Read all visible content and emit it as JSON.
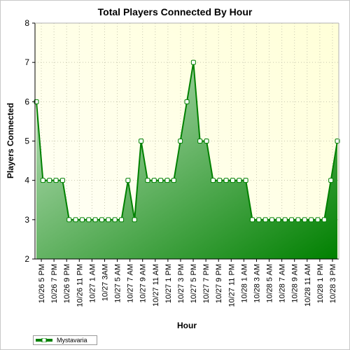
{
  "colors": {
    "plot_bg_light": "#fffff8",
    "plot_bg_dark": "#ffffd8",
    "area_light": "#c8e6c8",
    "area_dark": "#008000",
    "line": "#008000",
    "marker_fill": "#ffffff"
  },
  "chart_data": {
    "type": "area",
    "title": "Total Players Connected By Hour",
    "xlabel": "Hour",
    "ylabel": "Players Connected",
    "ylim": [
      2,
      8
    ],
    "yticks": [
      2,
      3,
      4,
      5,
      6,
      7,
      8
    ],
    "grid": true,
    "legend_position": "bottom-left",
    "x_tick_labels": [
      "10/26 5 PM",
      "10/26 7 PM",
      "10/26 9 PM",
      "10/26 11 PM",
      "10/27 1 AM",
      "10/27 3AM",
      "10/27 5 AM",
      "10/27 7 AM",
      "10/27 9 AM",
      "10/27 11 AM",
      "10/27 1 PM",
      "10/27 3 PM",
      "10/27 5 PM",
      "10/27 7 PM",
      "10/27 9 PM",
      "10/27 11 PM",
      "10/28 1 AM",
      "10/28 3 AM",
      "10/28 5 AM",
      "10/28 7 AM",
      "10/28 9 AM",
      "10/28 11 AM",
      "10/28 1 PM",
      "10/28 3 PM"
    ],
    "series": [
      {
        "name": "Mystavaria",
        "values": [
          6,
          4,
          4,
          4,
          4,
          3,
          3,
          3,
          3,
          3,
          3,
          3,
          3,
          3,
          4,
          3,
          5,
          4,
          4,
          4,
          4,
          4,
          5,
          6,
          7,
          5,
          5,
          4,
          4,
          4,
          4,
          4,
          4,
          3,
          3,
          3,
          3,
          3,
          3,
          3,
          3,
          3,
          3,
          3,
          3,
          4,
          5
        ]
      }
    ]
  }
}
